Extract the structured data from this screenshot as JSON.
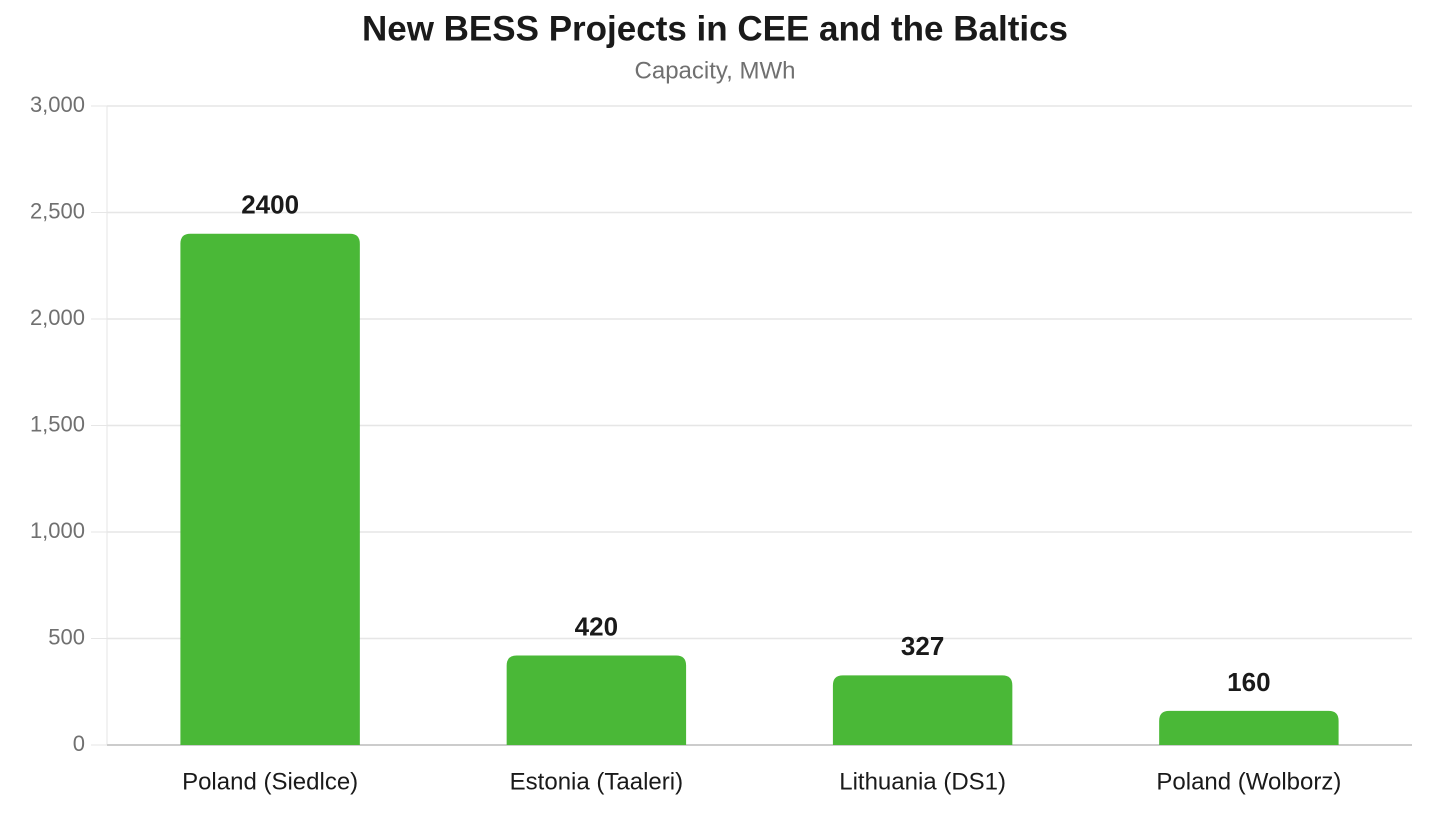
{
  "chart_data": {
    "type": "bar",
    "title": "New BESS Projects in CEE and the Baltics",
    "subtitle": "Capacity, MWh",
    "categories": [
      "Poland (Siedlce)",
      "Estonia (Taaleri)",
      "Lithuania (DS1)",
      "Poland (Wolborz)"
    ],
    "values": [
      2400,
      420,
      327,
      160
    ],
    "color": "#4ab837",
    "ylim": [
      0,
      3000
    ],
    "yticks": [
      0,
      500,
      {
        "value": 1000,
        "label": "1,000"
      },
      {
        "value": 1500,
        "label": "1,500"
      },
      {
        "value": 2000,
        "label": "2,000"
      },
      {
        "value": 2500,
        "label": "2,500"
      },
      {
        "value": 3000,
        "label": "3,000"
      }
    ],
    "grid": true
  }
}
